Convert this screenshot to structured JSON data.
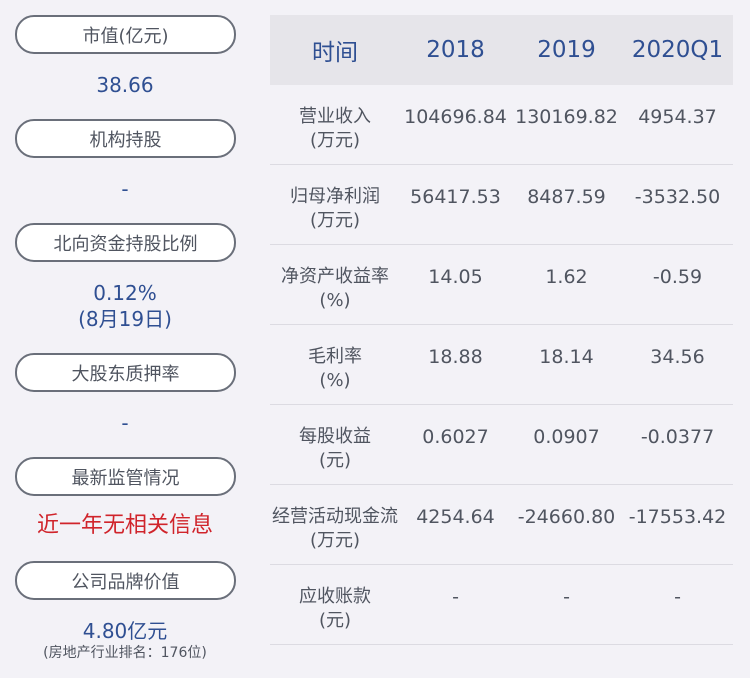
{
  "left_panel": {
    "items": [
      {
        "label": "市值(亿元)",
        "value": "38.66"
      },
      {
        "label": "机构持股",
        "value": "-"
      },
      {
        "label": "北向资金持股比例",
        "value": "0.12%",
        "value2": "(8月19日)"
      },
      {
        "label": "大股东质押率",
        "value": "-"
      },
      {
        "label": "最新监管情况",
        "value": "近一年无相关信息"
      },
      {
        "label": "公司品牌价值",
        "value": "4.80亿元",
        "note": "(房地产行业排名：176位)"
      }
    ]
  },
  "table": {
    "headers": [
      "时间",
      "2018",
      "2019",
      "2020Q1"
    ],
    "rows": [
      {
        "name": "营业收入",
        "unit": "(万元)",
        "values": [
          "104696.84",
          "130169.82",
          "4954.37"
        ]
      },
      {
        "name": "归母净利润",
        "unit": "(万元)",
        "values": [
          "56417.53",
          "8487.59",
          "-3532.50"
        ]
      },
      {
        "name": "净资产收益率",
        "unit": "(%)",
        "values": [
          "14.05",
          "1.62",
          "-0.59"
        ]
      },
      {
        "name": "毛利率",
        "unit": "(%)",
        "values": [
          "18.88",
          "18.14",
          "34.56"
        ]
      },
      {
        "name": "每股收益",
        "unit": "(元)",
        "values": [
          "0.6027",
          "0.0907",
          "-0.0377"
        ]
      },
      {
        "name": "经营活动现金流",
        "unit": "(万元)",
        "values": [
          "4254.64",
          "-24660.80",
          "-17553.42"
        ]
      },
      {
        "name": "应收账款",
        "unit": "(元)",
        "values": [
          "-",
          "-",
          "-"
        ]
      }
    ]
  }
}
